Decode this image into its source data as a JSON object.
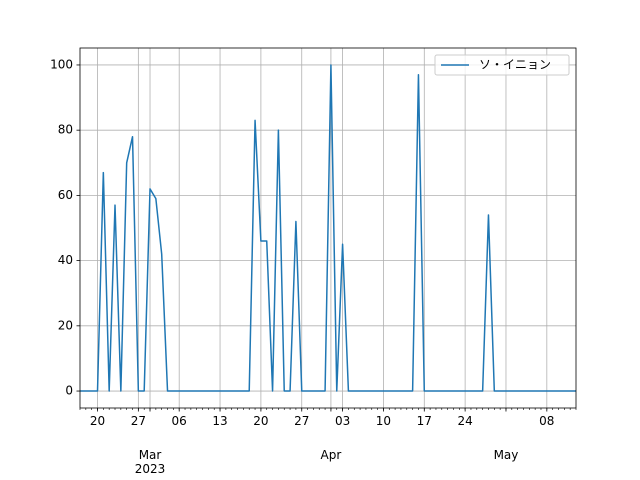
{
  "chart_data": {
    "type": "line",
    "x": [
      "2023-02-17",
      "2023-02-18",
      "2023-02-19",
      "2023-02-20",
      "2023-02-21",
      "2023-02-22",
      "2023-02-23",
      "2023-02-24",
      "2023-02-25",
      "2023-02-26",
      "2023-02-27",
      "2023-02-28",
      "2023-03-01",
      "2023-03-02",
      "2023-03-03",
      "2023-03-04",
      "2023-03-05",
      "2023-03-06",
      "2023-03-07",
      "2023-03-08",
      "2023-03-09",
      "2023-03-10",
      "2023-03-11",
      "2023-03-12",
      "2023-03-13",
      "2023-03-14",
      "2023-03-15",
      "2023-03-16",
      "2023-03-17",
      "2023-03-18",
      "2023-03-19",
      "2023-03-20",
      "2023-03-21",
      "2023-03-22",
      "2023-03-23",
      "2023-03-24",
      "2023-03-25",
      "2023-03-26",
      "2023-03-27",
      "2023-03-28",
      "2023-03-29",
      "2023-03-30",
      "2023-03-31",
      "2023-04-01",
      "2023-04-02",
      "2023-04-03",
      "2023-04-04",
      "2023-04-05",
      "2023-04-06",
      "2023-04-07",
      "2023-04-08",
      "2023-04-09",
      "2023-04-10",
      "2023-04-11",
      "2023-04-12",
      "2023-04-13",
      "2023-04-14",
      "2023-04-15",
      "2023-04-16",
      "2023-04-17",
      "2023-04-18",
      "2023-04-19",
      "2023-04-20",
      "2023-04-21",
      "2023-04-22",
      "2023-04-23",
      "2023-04-24",
      "2023-04-25",
      "2023-04-26",
      "2023-04-27",
      "2023-04-28",
      "2023-04-29",
      "2023-04-30",
      "2023-05-01",
      "2023-05-02",
      "2023-05-03",
      "2023-05-04",
      "2023-05-05",
      "2023-05-06",
      "2023-05-07",
      "2023-05-08",
      "2023-05-09",
      "2023-05-10",
      "2023-05-11",
      "2023-05-12",
      "2023-05-13"
    ],
    "series": [
      {
        "name": "ソ・イニョン",
        "color": "#1f77b4",
        "values": [
          0,
          0,
          0,
          0,
          67,
          0,
          57,
          0,
          70,
          78,
          0,
          0,
          62,
          59,
          42,
          0,
          0,
          0,
          0,
          0,
          0,
          0,
          0,
          0,
          0,
          0,
          0,
          0,
          0,
          0,
          83,
          46,
          46,
          0,
          80,
          0,
          0,
          52,
          0,
          0,
          0,
          0,
          0,
          100,
          0,
          45,
          0,
          0,
          0,
          0,
          0,
          0,
          0,
          0,
          0,
          0,
          0,
          0,
          97,
          0,
          0,
          0,
          0,
          0,
          0,
          0,
          0,
          0,
          0,
          0,
          54,
          0,
          0,
          0,
          0,
          0,
          0,
          0,
          0,
          0,
          0,
          0,
          0,
          0,
          0,
          0
        ]
      }
    ],
    "xlim": [
      "2023-02-17",
      "2023-05-13"
    ],
    "xticks": [
      {
        "value": "2023-02-20",
        "label": "20"
      },
      {
        "value": "2023-02-27",
        "label": "27"
      },
      {
        "value": "2023-03-01",
        "label": "Mar\n2023"
      },
      {
        "value": "2023-03-06",
        "label": "06"
      },
      {
        "value": "2023-03-13",
        "label": "13"
      },
      {
        "value": "2023-03-20",
        "label": "20"
      },
      {
        "value": "2023-03-27",
        "label": "27"
      },
      {
        "value": "2023-04-01",
        "label": "Apr"
      },
      {
        "value": "2023-04-03",
        "label": "03"
      },
      {
        "value": "2023-04-10",
        "label": "10"
      },
      {
        "value": "2023-04-17",
        "label": "17"
      },
      {
        "value": "2023-04-24",
        "label": "24"
      },
      {
        "value": "2023-05-01",
        "label": "May"
      },
      {
        "value": "2023-05-08",
        "label": "08"
      }
    ],
    "ylim": [
      -5.2,
      105.2
    ],
    "yticks": [
      0,
      20,
      40,
      60,
      80,
      100
    ],
    "grid": true,
    "legend": "upper right"
  }
}
